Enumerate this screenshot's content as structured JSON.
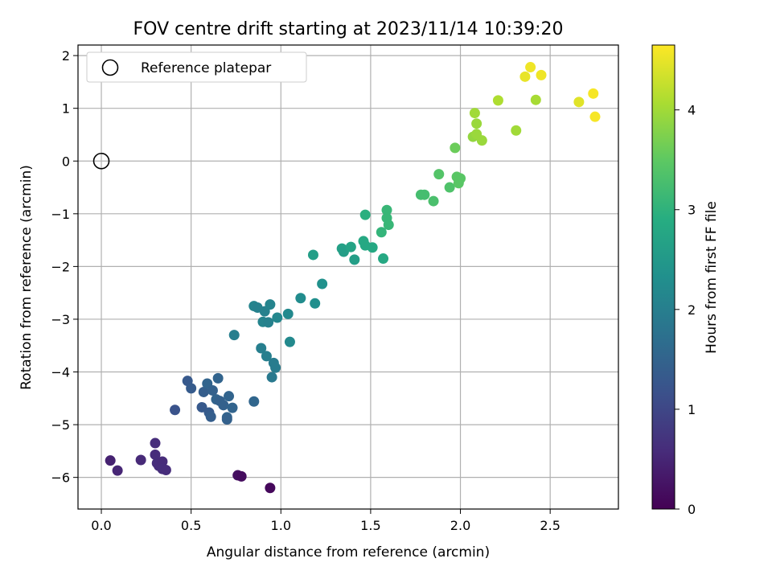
{
  "chart_data": {
    "type": "scatter",
    "title": "FOV centre drift starting at 2023/11/14 10:39:20",
    "xlabel": "Angular distance from reference (arcmin)",
    "ylabel": "Rotation from reference (arcmin)",
    "xlim": [
      -0.13,
      2.88
    ],
    "ylim": [
      -6.6,
      2.2
    ],
    "x_ticks": [
      "0.0",
      "0.5",
      "1.0",
      "1.5",
      "2.0",
      "2.5"
    ],
    "x_tick_values": [
      0,
      0.5,
      1.0,
      1.5,
      2.0,
      2.5
    ],
    "y_ticks": [
      "2",
      "1",
      "0",
      "−1",
      "−2",
      "−3",
      "−4",
      "−5",
      "−6"
    ],
    "y_tick_values": [
      2,
      1,
      0,
      -1,
      -2,
      -3,
      -4,
      -5,
      -6
    ],
    "grid": true,
    "legend": {
      "label": "Reference platepar",
      "placement": "top-left"
    },
    "reference": {
      "x": 0,
      "y": 0
    },
    "colorbar": {
      "label": "Hours from first FF file",
      "range": [
        0,
        4.65
      ],
      "ticks": [
        "0",
        "1",
        "2",
        "3",
        "4"
      ],
      "tick_values": [
        0,
        1,
        2,
        3,
        4
      ],
      "colormap": "viridis"
    },
    "points": [
      [
        0.05,
        -5.68,
        0.45
      ],
      [
        0.09,
        -5.87,
        0.5
      ],
      [
        0.22,
        -5.67,
        0.55
      ],
      [
        0.3,
        -5.35,
        0.6
      ],
      [
        0.3,
        -5.57,
        0.6
      ],
      [
        0.31,
        -5.73,
        0.62
      ],
      [
        0.32,
        -5.78,
        0.6
      ],
      [
        0.34,
        -5.7,
        0.58
      ],
      [
        0.34,
        -5.84,
        0.62
      ],
      [
        0.36,
        -5.86,
        0.6
      ],
      [
        0.76,
        -5.96,
        0.2
      ],
      [
        0.78,
        -5.98,
        0.15
      ],
      [
        0.94,
        -6.2,
        0.1
      ],
      [
        0.41,
        -4.72,
        1.2
      ],
      [
        0.48,
        -4.17,
        1.3
      ],
      [
        0.5,
        -4.31,
        1.35
      ],
      [
        0.56,
        -4.67,
        1.3
      ],
      [
        0.57,
        -4.38,
        1.4
      ],
      [
        0.59,
        -4.22,
        1.5
      ],
      [
        0.6,
        -4.77,
        1.35
      ],
      [
        0.61,
        -4.85,
        1.4
      ],
      [
        0.62,
        -4.35,
        1.45
      ],
      [
        0.64,
        -4.52,
        1.5
      ],
      [
        0.65,
        -4.12,
        1.5
      ],
      [
        0.66,
        -4.55,
        1.45
      ],
      [
        0.68,
        -4.63,
        1.45
      ],
      [
        0.7,
        -4.86,
        1.5
      ],
      [
        0.7,
        -4.9,
        1.45
      ],
      [
        0.71,
        -4.46,
        1.5
      ],
      [
        0.73,
        -4.68,
        1.5
      ],
      [
        0.85,
        -4.56,
        1.55
      ],
      [
        0.74,
        -3.3,
        2.0
      ],
      [
        0.85,
        -2.75,
        2.1
      ],
      [
        0.87,
        -2.78,
        2.05
      ],
      [
        0.89,
        -3.55,
        2.0
      ],
      [
        0.9,
        -3.05,
        2.1
      ],
      [
        0.91,
        -2.85,
        2.05
      ],
      [
        0.92,
        -3.7,
        2.0
      ],
      [
        0.93,
        -3.06,
        2.05
      ],
      [
        0.94,
        -2.72,
        2.1
      ],
      [
        0.95,
        -4.1,
        1.9
      ],
      [
        0.96,
        -3.83,
        1.95
      ],
      [
        0.97,
        -3.92,
        1.95
      ],
      [
        0.98,
        -2.97,
        2.15
      ],
      [
        1.04,
        -2.9,
        2.2
      ],
      [
        1.05,
        -3.43,
        2.2
      ],
      [
        1.11,
        -2.6,
        2.25
      ],
      [
        1.19,
        -2.7,
        2.3
      ],
      [
        1.23,
        -2.33,
        2.35
      ],
      [
        1.18,
        -1.78,
        2.6
      ],
      [
        1.34,
        -1.66,
        2.65
      ],
      [
        1.35,
        -1.72,
        2.6
      ],
      [
        1.39,
        -1.63,
        2.7
      ],
      [
        1.41,
        -1.87,
        2.6
      ],
      [
        1.46,
        -1.52,
        2.8
      ],
      [
        1.47,
        -1.6,
        2.8
      ],
      [
        1.47,
        -1.02,
        2.95
      ],
      [
        1.51,
        -1.64,
        2.8
      ],
      [
        1.56,
        -1.35,
        3.05
      ],
      [
        1.57,
        -1.85,
        2.8
      ],
      [
        1.59,
        -0.93,
        3.1
      ],
      [
        1.59,
        -1.08,
        3.1
      ],
      [
        1.6,
        -1.21,
        3.1
      ],
      [
        1.78,
        -0.64,
        3.25
      ],
      [
        1.8,
        -0.64,
        3.25
      ],
      [
        1.85,
        -0.76,
        3.3
      ],
      [
        1.88,
        -0.25,
        3.4
      ],
      [
        1.94,
        -0.5,
        3.35
      ],
      [
        1.97,
        0.25,
        3.6
      ],
      [
        1.98,
        -0.3,
        3.45
      ],
      [
        1.99,
        -0.42,
        3.45
      ],
      [
        2.0,
        -0.33,
        3.45
      ],
      [
        2.07,
        0.46,
        3.9
      ],
      [
        2.08,
        0.91,
        4.0
      ],
      [
        2.09,
        0.51,
        3.95
      ],
      [
        2.09,
        0.71,
        3.95
      ],
      [
        2.12,
        0.39,
        3.95
      ],
      [
        2.21,
        1.15,
        4.1
      ],
      [
        2.31,
        0.58,
        4.0
      ],
      [
        2.42,
        1.16,
        4.05
      ],
      [
        2.36,
        1.6,
        4.5
      ],
      [
        2.39,
        1.78,
        4.55
      ],
      [
        2.45,
        1.63,
        4.55
      ],
      [
        2.66,
        1.12,
        4.45
      ],
      [
        2.74,
        1.28,
        4.6
      ],
      [
        2.75,
        0.84,
        4.6
      ]
    ]
  }
}
